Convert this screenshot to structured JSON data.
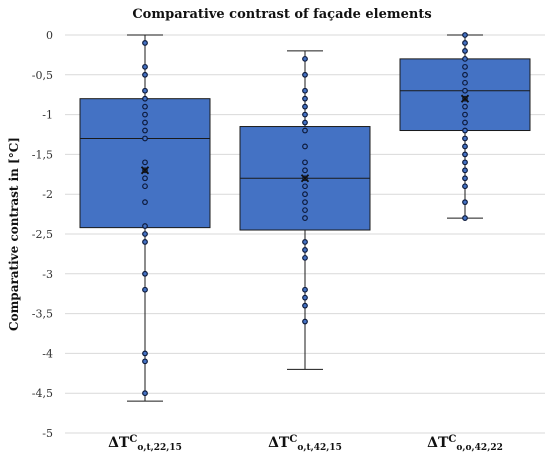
{
  "chart_data": {
    "type": "box",
    "title": "Comparative contrast of façade elements",
    "ylabel": "Comparative contrast in [°C]",
    "xlabel": "",
    "ylim": [
      -5,
      0
    ],
    "yticks": [
      0,
      -0.5,
      -1,
      -1.5,
      -2,
      -2.5,
      -3,
      -3.5,
      -4,
      -4.5,
      -5
    ],
    "ytick_labels": [
      "0",
      "-0,5",
      "-1",
      "-1,5",
      "-2",
      "-2,5",
      "-3",
      "-3,5",
      "-4",
      "-4,5",
      "-5"
    ],
    "grid": true,
    "box_color": "#4472C4",
    "categories": [
      {
        "main": "ΔT",
        "sup": "C",
        "sub": "o,t,22,15"
      },
      {
        "main": "ΔT",
        "sup": "C",
        "sub": "o,t,42,15"
      },
      {
        "main": "ΔT",
        "sup": "C",
        "sub": "o,o,42,22"
      }
    ],
    "boxes": [
      {
        "min": -4.6,
        "q1": -2.42,
        "median": -1.3,
        "q3": -0.8,
        "max": 0,
        "mean": -1.7,
        "points": [
          -0.1,
          -0.4,
          -0.5,
          -0.7,
          -0.8,
          -0.9,
          -1.0,
          -1.1,
          -1.2,
          -1.3,
          -1.6,
          -1.7,
          -1.8,
          -1.9,
          -2.1,
          -2.4,
          -2.5,
          -2.6,
          -3.0,
          -3.2,
          -4.0,
          -4.1,
          -4.5
        ]
      },
      {
        "min": -4.2,
        "q1": -2.45,
        "median": -1.8,
        "q3": -1.15,
        "max": -0.2,
        "mean": -1.8,
        "points": [
          -0.3,
          -0.5,
          -0.7,
          -0.8,
          -0.9,
          -1.0,
          -1.1,
          -1.2,
          -1.4,
          -1.6,
          -1.7,
          -1.8,
          -1.9,
          -2.0,
          -2.1,
          -2.2,
          -2.3,
          -2.6,
          -2.7,
          -2.8,
          -3.2,
          -3.3,
          -3.4,
          -3.6
        ]
      },
      {
        "min": -2.3,
        "q1": -1.2,
        "median": -0.7,
        "q3": -0.3,
        "max": 0,
        "mean": -0.8,
        "points": [
          0,
          -0.1,
          -0.2,
          -0.3,
          -0.4,
          -0.5,
          -0.6,
          -0.7,
          -0.8,
          -0.9,
          -1.0,
          -1.1,
          -1.2,
          -1.3,
          -1.4,
          -1.5,
          -1.6,
          -1.7,
          -1.8,
          -1.9,
          -2.1,
          -2.3
        ]
      }
    ]
  }
}
